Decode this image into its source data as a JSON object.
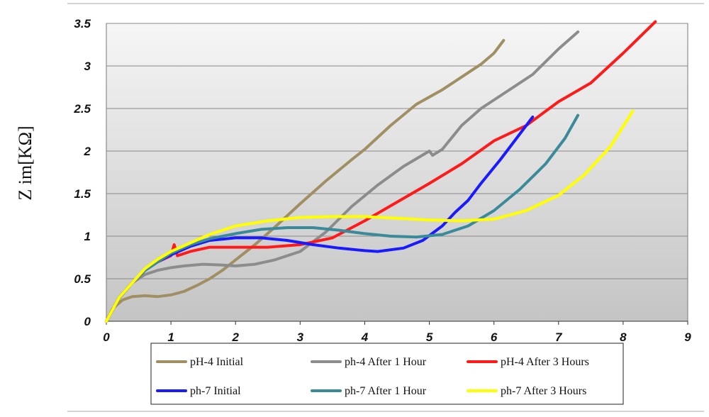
{
  "chart_data": {
    "type": "line",
    "title": "",
    "xlabel": "",
    "ylabel": "Z im[KΩ]",
    "xlim": [
      0,
      9
    ],
    "ylim": [
      0,
      3.5
    ],
    "x_ticks": [
      "0",
      "1",
      "2",
      "3",
      "4",
      "5",
      "6",
      "7",
      "8",
      "9"
    ],
    "y_ticks": [
      "0",
      "0.5",
      "1",
      "1.5",
      "2",
      "2.5",
      "3",
      "3.5"
    ],
    "grid": "horizontal",
    "legend_position": "bottom",
    "series": [
      {
        "name": "pH-4 Initial",
        "color": "#a08f62",
        "x": [
          0,
          0.1,
          0.25,
          0.4,
          0.6,
          0.8,
          1.0,
          1.2,
          1.4,
          1.6,
          1.8,
          2.0,
          2.3,
          2.6,
          3.0,
          3.4,
          3.8,
          4.0,
          4.4,
          4.8,
          5.2,
          5.6,
          5.8,
          6.0,
          6.15
        ],
        "y": [
          0,
          0.15,
          0.25,
          0.29,
          0.3,
          0.29,
          0.31,
          0.35,
          0.42,
          0.5,
          0.6,
          0.72,
          0.9,
          1.1,
          1.38,
          1.65,
          1.9,
          2.02,
          2.3,
          2.55,
          2.72,
          2.92,
          3.02,
          3.15,
          3.3
        ]
      },
      {
        "name": "ph-4 After 1 Hour",
        "color": "#8c8c8c",
        "x": [
          0,
          0.2,
          0.4,
          0.6,
          0.8,
          1.0,
          1.2,
          1.5,
          1.8,
          2.0,
          2.3,
          2.6,
          3.0,
          3.4,
          3.8,
          4.2,
          4.6,
          5.0,
          5.05,
          5.2,
          5.5,
          5.8,
          6.2,
          6.6,
          7.0,
          7.3
        ],
        "y": [
          0,
          0.27,
          0.45,
          0.55,
          0.6,
          0.63,
          0.65,
          0.67,
          0.66,
          0.65,
          0.67,
          0.72,
          0.82,
          1.05,
          1.35,
          1.6,
          1.82,
          2.0,
          1.95,
          2.02,
          2.3,
          2.5,
          2.7,
          2.9,
          3.2,
          3.4
        ]
      },
      {
        "name": "pH-4 After 3 Hours",
        "color": "#ff1a1a",
        "x": [
          0,
          0.2,
          0.4,
          0.6,
          0.8,
          1.0,
          1.05,
          1.1,
          1.3,
          1.6,
          2.0,
          2.5,
          3.0,
          3.5,
          4.0,
          4.5,
          5.0,
          5.5,
          6.0,
          6.5,
          7.0,
          7.5,
          8.0,
          8.5
        ],
        "y": [
          0,
          0.28,
          0.45,
          0.6,
          0.7,
          0.77,
          0.9,
          0.77,
          0.82,
          0.87,
          0.87,
          0.87,
          0.9,
          0.98,
          1.18,
          1.4,
          1.62,
          1.85,
          2.12,
          2.3,
          2.58,
          2.8,
          3.15,
          3.52
        ]
      },
      {
        "name": "ph-7 Initial",
        "color": "#1a1aff",
        "x": [
          0,
          0.2,
          0.4,
          0.6,
          0.8,
          1.0,
          1.3,
          1.6,
          2.0,
          2.4,
          2.8,
          3.2,
          3.6,
          4.0,
          4.2,
          4.6,
          4.9,
          5.2,
          5.4,
          5.6,
          5.8,
          6.1,
          6.4,
          6.6
        ],
        "y": [
          0,
          0.28,
          0.45,
          0.6,
          0.7,
          0.78,
          0.88,
          0.95,
          0.98,
          0.98,
          0.95,
          0.9,
          0.86,
          0.83,
          0.82,
          0.86,
          0.95,
          1.12,
          1.28,
          1.42,
          1.62,
          1.9,
          2.2,
          2.4
        ]
      },
      {
        "name": "ph-7 After 1 Hour",
        "color": "#3a8a9a",
        "x": [
          0,
          0.2,
          0.4,
          0.6,
          0.8,
          1.0,
          1.3,
          1.6,
          2.0,
          2.4,
          2.8,
          3.2,
          3.6,
          4.0,
          4.4,
          4.8,
          5.2,
          5.6,
          6.0,
          6.4,
          6.8,
          7.1,
          7.3
        ],
        "y": [
          0,
          0.28,
          0.45,
          0.6,
          0.7,
          0.8,
          0.9,
          0.97,
          1.03,
          1.08,
          1.1,
          1.1,
          1.07,
          1.03,
          1.0,
          0.99,
          1.02,
          1.12,
          1.3,
          1.55,
          1.85,
          2.15,
          2.42
        ]
      },
      {
        "name": "ph-7 After 3 Hours",
        "color": "#ffff00",
        "x": [
          0,
          0.2,
          0.4,
          0.6,
          0.8,
          1.0,
          1.3,
          1.6,
          2.0,
          2.5,
          3.0,
          3.5,
          4.0,
          4.5,
          5.0,
          5.5,
          6.0,
          6.5,
          7.0,
          7.4,
          7.8,
          8.15
        ],
        "y": [
          0,
          0.28,
          0.45,
          0.62,
          0.73,
          0.82,
          0.92,
          1.02,
          1.12,
          1.18,
          1.22,
          1.23,
          1.23,
          1.21,
          1.19,
          1.18,
          1.2,
          1.3,
          1.48,
          1.72,
          2.05,
          2.47
        ]
      }
    ]
  }
}
